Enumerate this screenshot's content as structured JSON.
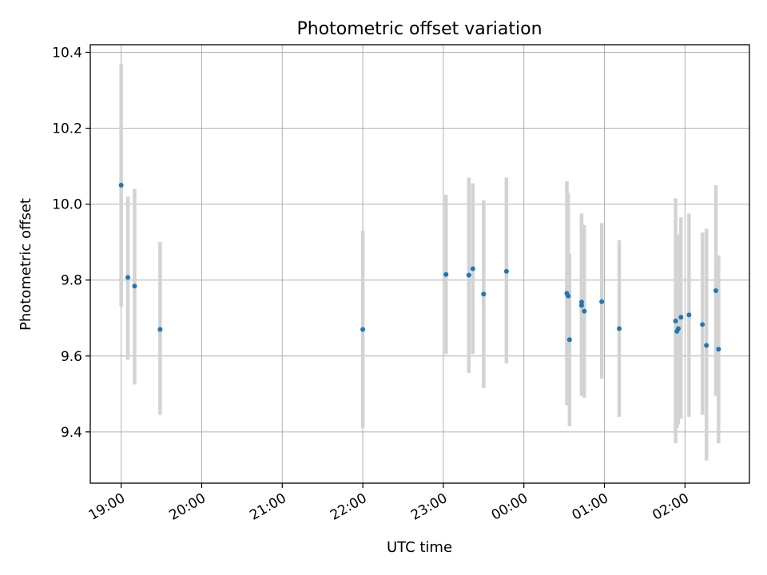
{
  "chart_data": {
    "type": "scatter",
    "title": "Photometric offset variation",
    "xlabel": "UTC time",
    "ylabel": "Photometric offset",
    "xlim": [
      "18:37",
      "02:48"
    ],
    "ylim": [
      9.265,
      10.42
    ],
    "x_ticks": [
      "19:00",
      "20:00",
      "21:00",
      "22:00",
      "23:00",
      "00:00",
      "01:00",
      "02:00"
    ],
    "y_ticks": [
      9.4,
      9.6,
      9.8,
      10.0,
      10.2,
      10.4
    ],
    "y_tick_labels": [
      "9.4",
      "9.6",
      "9.8",
      "10.0",
      "10.2",
      "10.4"
    ],
    "grid": true,
    "point_color": "#1f77b4",
    "errorbar_color": "#d3d3d3",
    "points": [
      {
        "x": "19:00",
        "y": 10.05,
        "ylo": 9.73,
        "yhi": 10.37
      },
      {
        "x": "19:05",
        "y": 9.807,
        "ylo": 9.59,
        "yhi": 10.02
      },
      {
        "x": "19:10",
        "y": 9.784,
        "ylo": 9.525,
        "yhi": 10.04
      },
      {
        "x": "19:29",
        "y": 9.67,
        "ylo": 9.445,
        "yhi": 9.9
      },
      {
        "x": "22:00",
        "y": 9.67,
        "ylo": 9.41,
        "yhi": 9.93
      },
      {
        "x": "23:02",
        "y": 9.815,
        "ylo": 9.605,
        "yhi": 10.025
      },
      {
        "x": "23:19",
        "y": 9.813,
        "ylo": 9.555,
        "yhi": 10.07
      },
      {
        "x": "23:22",
        "y": 9.83,
        "ylo": 9.605,
        "yhi": 10.055
      },
      {
        "x": "23:30",
        "y": 9.763,
        "ylo": 9.515,
        "yhi": 10.01
      },
      {
        "x": "23:47",
        "y": 9.823,
        "ylo": 9.58,
        "yhi": 10.07
      },
      {
        "x": "00:32",
        "y": 9.765,
        "ylo": 9.47,
        "yhi": 10.06
      },
      {
        "x": "00:33",
        "y": 9.758,
        "ylo": 9.49,
        "yhi": 10.03
      },
      {
        "x": "00:34",
        "y": 9.643,
        "ylo": 9.415,
        "yhi": 9.87
      },
      {
        "x": "00:43",
        "y": 9.742,
        "ylo": 9.495,
        "yhi": 9.975
      },
      {
        "x": "00:43",
        "y": 9.733,
        "ylo": 9.51,
        "yhi": 9.96
      },
      {
        "x": "00:45",
        "y": 9.718,
        "ylo": 9.49,
        "yhi": 9.945
      },
      {
        "x": "00:58",
        "y": 9.743,
        "ylo": 9.54,
        "yhi": 9.95
      },
      {
        "x": "01:11",
        "y": 9.672,
        "ylo": 9.44,
        "yhi": 9.905
      },
      {
        "x": "01:53",
        "y": 9.692,
        "ylo": 9.37,
        "yhi": 10.015
      },
      {
        "x": "01:54",
        "y": 9.665,
        "ylo": 9.41,
        "yhi": 9.92
      },
      {
        "x": "01:55",
        "y": 9.672,
        "ylo": 9.42,
        "yhi": 9.92
      },
      {
        "x": "01:57",
        "y": 9.702,
        "ylo": 9.435,
        "yhi": 9.965
      },
      {
        "x": "02:03",
        "y": 9.708,
        "ylo": 9.44,
        "yhi": 9.975
      },
      {
        "x": "02:13",
        "y": 9.683,
        "ylo": 9.445,
        "yhi": 9.925
      },
      {
        "x": "02:16",
        "y": 9.628,
        "ylo": 9.325,
        "yhi": 9.935
      },
      {
        "x": "02:23",
        "y": 9.772,
        "ylo": 9.495,
        "yhi": 10.05
      },
      {
        "x": "02:25",
        "y": 9.618,
        "ylo": 9.37,
        "yhi": 9.865
      }
    ]
  }
}
